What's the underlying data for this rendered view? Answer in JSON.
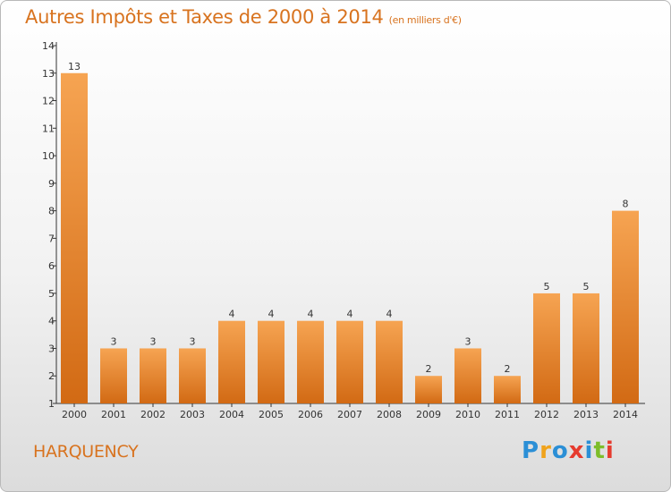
{
  "title": "Autres Impôts et Taxes de 2000 à 2014",
  "unit": "(en milliers d'€)",
  "commune": "HARQUENCY",
  "logo": {
    "letters": [
      "P",
      "r",
      "o",
      "x",
      "i",
      "t",
      "i"
    ],
    "colors": [
      "#2b8fd6",
      "#f0a31c",
      "#2b8fd6",
      "#e63b2e",
      "#2b8fd6",
      "#7dbd2a",
      "#e63b2e"
    ]
  },
  "colors": {
    "bar_light": "#f6a452",
    "bar_dark": "#d26a14",
    "text": "#d8731f"
  },
  "chart_data": {
    "type": "bar",
    "categories": [
      "2000",
      "2001",
      "2002",
      "2003",
      "2004",
      "2005",
      "2006",
      "2007",
      "2008",
      "2009",
      "2010",
      "2011",
      "2012",
      "2013",
      "2014"
    ],
    "values": [
      13,
      3,
      3,
      3,
      4,
      4,
      4,
      4,
      4,
      2,
      3,
      2,
      5,
      5,
      8
    ],
    "title": "Autres Impôts et Taxes de 2000 à 2014",
    "ylim": [
      1,
      14
    ],
    "yticks": [
      1,
      2,
      3,
      4,
      5,
      6,
      7,
      8,
      9,
      10,
      11,
      12,
      13,
      14
    ],
    "grid": false,
    "legend": "none"
  }
}
